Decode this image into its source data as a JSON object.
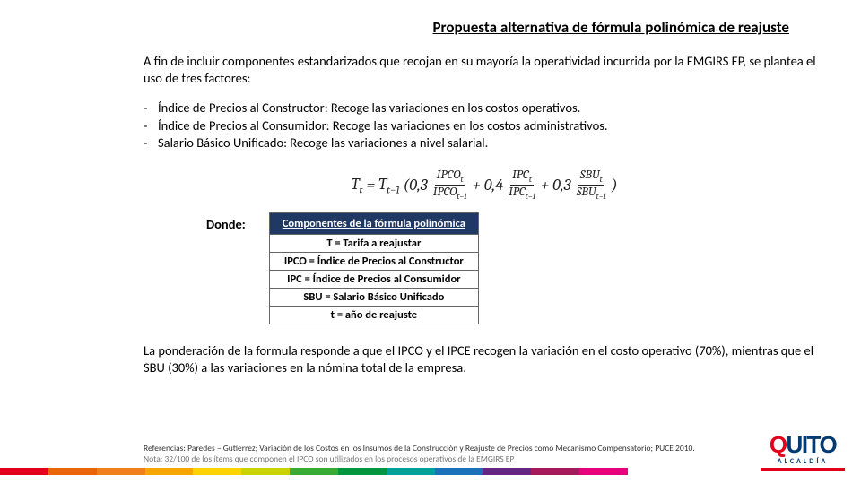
{
  "title": "Propuesta alternativa de fórmula polinómica de reajuste",
  "intro": "A fin de incluir componentes estandarizados que recojan en su mayoría la operatividad incurrida por la EMGIRS EP, se plantea el uso de tres factores:",
  "bullets": [
    "Índice de Precios al Constructor: Recoge las variaciones en los costos operativos.",
    "Índice de Precios al Consumidor: Recoge las variaciones en los costos administrativos.",
    "Salario Básico Unificado: Recoge las variaciones a nivel salarial."
  ],
  "formula": {
    "lhs_base": "T",
    "lhs_sub": "t",
    "eq": "=",
    "rhs_base": "T",
    "rhs_sub": "t−1",
    "open": "(0,3",
    "f1_num": "IPCO",
    "f1_num_sub": "t",
    "f1_den": "IPCO",
    "f1_den_sub": "t−1",
    "plus1": "+ 0,4",
    "f2_num": "IPC",
    "f2_num_sub": "t",
    "f2_den": "IPC",
    "f2_den_sub": "t−1",
    "plus2": "+ 0,3",
    "f3_num": "SBU",
    "f3_num_sub": "t",
    "f3_den": "SBU",
    "f3_den_sub": "t−1",
    "close": ")"
  },
  "donde_label": "Donde:",
  "table": {
    "header": "Componentes de la fórmula polinómica",
    "rows": [
      "T = Tarifa a reajustar",
      "IPCO = Índice de Precios al Constructor",
      "IPC = Índice de Precios al Consumidor",
      "SBU = Salario Básico Unificado",
      "t = año de reajuste"
    ],
    "header_bg": "#1f3864",
    "header_fg": "#ffffff",
    "border": "#666666"
  },
  "conclusion": "La ponderación de la formula responde a que el IPCO y el IPCE recogen la variación en el costo operativo (70%), mientras que el SBU (30%) a las variaciones en la nómina total de la empresa.",
  "refs_line1": "Referencias: Paredes – Gutierrez; Variación de los Costos en los Insumos de la Construcción y Reajuste de Precios como Mecanismo Compensatorio; PUCE 2010.",
  "refs_line2": "Nota: 32/100 de los ítems que componen el IPCO son utilizados en los procesos operativos de la EMGIRS EP",
  "colorbar": [
    "#e2001a",
    "#ec6408",
    "#f08019",
    "#f7a600",
    "#ffd400",
    "#c8d300",
    "#3aaa35",
    "#009640",
    "#00a19a",
    "#1d71b8",
    "#662483",
    "#a3195b",
    "#e6007e"
  ],
  "logo": {
    "q": "Q",
    "rest": "UITO",
    "sub": "ALCALDÍA",
    "q_color": "#e2001a",
    "rest_color": "#003a70"
  }
}
